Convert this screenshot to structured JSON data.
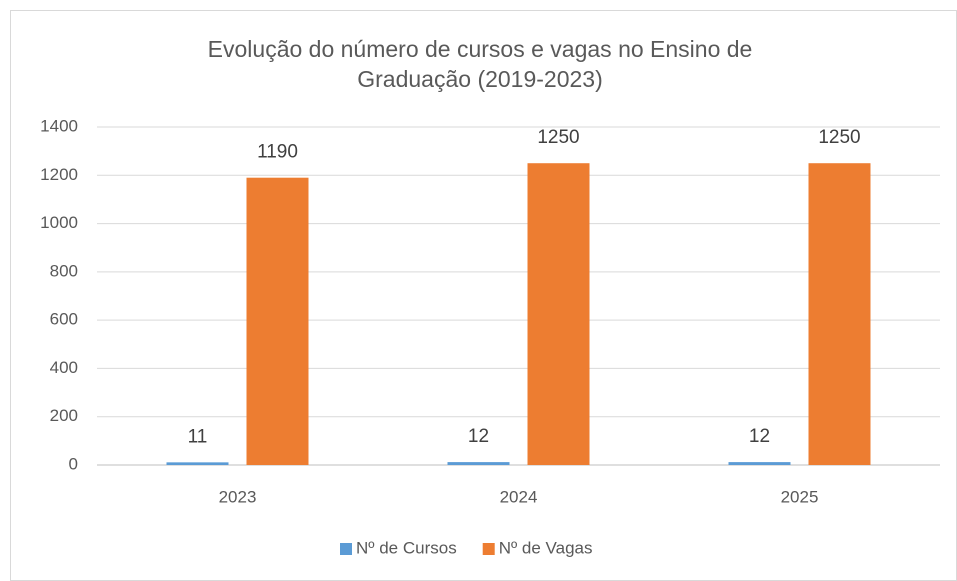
{
  "chart_data": {
    "type": "bar",
    "title": "Evolução do número de cursos e vagas no Ensino de Graduação (2019-2023)",
    "categories": [
      "2023",
      "2024",
      "2025"
    ],
    "series": [
      {
        "name": "Nº de Cursos",
        "color": "#5b9bd5",
        "values": [
          11,
          12,
          12
        ]
      },
      {
        "name": "Nº de Vagas",
        "color": "#ed7d31",
        "values": [
          1190,
          1250,
          1250
        ]
      }
    ],
    "ylim": [
      0,
      1400
    ],
    "yticks": [
      0,
      200,
      400,
      600,
      800,
      1000,
      1200,
      1400
    ],
    "grid": true,
    "legend": "bottom"
  }
}
